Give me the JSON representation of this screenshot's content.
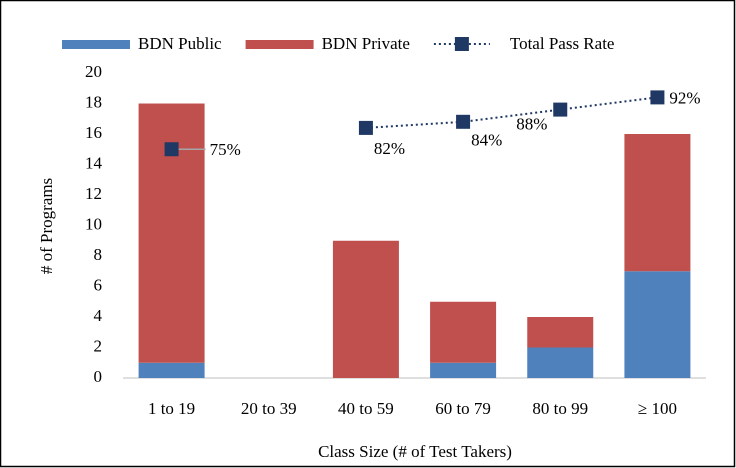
{
  "chart_data": {
    "type": "bar",
    "stacked": true,
    "categories": [
      "1 to 19",
      "20 to 39",
      "40 to 59",
      "60 to 79",
      "80 to 99",
      "≥ 100"
    ],
    "series": [
      {
        "name": "BDN Public",
        "color": "#4f81bd",
        "values": [
          1,
          0,
          0,
          1,
          2,
          7
        ]
      },
      {
        "name": "BDN Private",
        "color": "#c0504d",
        "values": [
          17,
          0,
          9,
          4,
          2,
          9
        ]
      },
      {
        "name": "Total Pass Rate",
        "type": "line",
        "axis": "y2",
        "color": "#1f3864",
        "line_style": "dotted",
        "values": [
          75,
          null,
          82,
          84,
          88,
          92
        ],
        "value_labels": [
          "75%",
          null,
          "82%",
          "84%",
          "88%",
          "92%"
        ]
      }
    ],
    "ylim": [
      0,
      20
    ],
    "yticks": [
      0,
      2,
      4,
      6,
      8,
      10,
      12,
      14,
      16,
      18,
      20
    ],
    "y2lim": [
      0,
      100
    ],
    "y_label": "# of Programs",
    "x_label": "Class Size (# of Test Takers)",
    "legend": "top",
    "grid": false
  }
}
